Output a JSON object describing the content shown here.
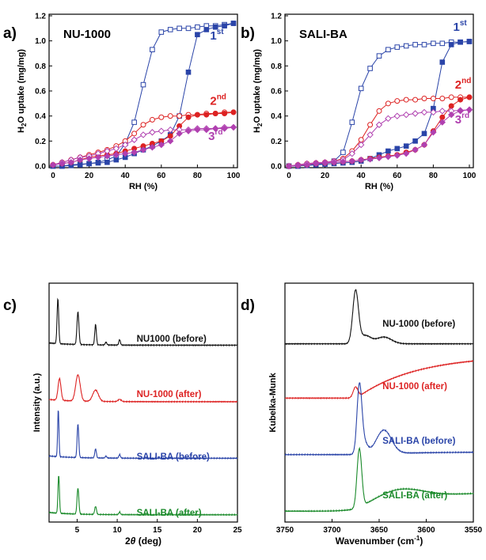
{
  "colors": {
    "blue": "#2a44a8",
    "red": "#dd2222",
    "magenta": "#b040b0",
    "black": "#111111",
    "green": "#1a8a2a"
  },
  "chart_data": [
    {
      "panel": "a)",
      "title": "NU-1000",
      "type": "line",
      "xlabel": "RH (%)",
      "ylabel": "H2O uptake (mg/mg)",
      "xlim": [
        0,
        100
      ],
      "ylim": [
        0,
        1.2
      ],
      "xticks": [
        "0",
        "20",
        "40",
        "60",
        "80",
        "100"
      ],
      "yticks": [
        "0.0",
        "0.2",
        "0.4",
        "0.6",
        "0.8",
        "1.0",
        "1.2"
      ],
      "annotations": [
        {
          "text": "1",
          "sup": "st",
          "color": "#2a44a8",
          "x": 87,
          "y": 1.01
        },
        {
          "text": "2",
          "sup": "nd",
          "color": "#dd2222",
          "x": 87,
          "y": 0.49
        },
        {
          "text": "3",
          "sup": "rd",
          "color": "#b040b0",
          "x": 86,
          "y": 0.21
        }
      ],
      "series": [
        {
          "color": "#2a44a8",
          "marker": "square-open",
          "x": [
            0,
            5,
            10,
            15,
            20,
            25,
            30,
            35,
            40,
            45,
            50,
            55,
            60,
            65,
            70,
            75,
            80,
            85,
            90,
            95,
            100
          ],
          "y": [
            0.0,
            0.0,
            0.01,
            0.015,
            0.02,
            0.03,
            0.05,
            0.08,
            0.18,
            0.35,
            0.65,
            0.93,
            1.07,
            1.09,
            1.1,
            1.1,
            1.11,
            1.12,
            1.12,
            1.13,
            1.14
          ]
        },
        {
          "color": "#2a44a8",
          "marker": "square-filled",
          "x": [
            0,
            5,
            10,
            15,
            20,
            25,
            30,
            35,
            40,
            45,
            50,
            55,
            60,
            65,
            70,
            75,
            80,
            85,
            90,
            95,
            100
          ],
          "y": [
            0.0,
            0.0,
            0.005,
            0.01,
            0.02,
            0.025,
            0.03,
            0.05,
            0.07,
            0.1,
            0.13,
            0.16,
            0.2,
            0.25,
            0.4,
            0.75,
            1.05,
            1.09,
            1.11,
            1.12,
            1.14
          ]
        },
        {
          "color": "#dd2222",
          "marker": "circle-open",
          "x": [
            0,
            5,
            10,
            15,
            20,
            25,
            30,
            35,
            40,
            45,
            50,
            55,
            60,
            65,
            70,
            75,
            80,
            85,
            90,
            95,
            100
          ],
          "y": [
            0.01,
            0.03,
            0.05,
            0.07,
            0.09,
            0.11,
            0.13,
            0.16,
            0.2,
            0.26,
            0.33,
            0.37,
            0.39,
            0.4,
            0.4,
            0.41,
            0.41,
            0.42,
            0.42,
            0.43,
            0.43
          ]
        },
        {
          "color": "#dd2222",
          "marker": "circle-filled",
          "x": [
            0,
            5,
            10,
            15,
            20,
            25,
            30,
            35,
            40,
            45,
            50,
            55,
            60,
            65,
            70,
            75,
            80,
            85,
            90,
            95,
            100
          ],
          "y": [
            0.01,
            0.02,
            0.03,
            0.05,
            0.07,
            0.08,
            0.09,
            0.1,
            0.12,
            0.14,
            0.16,
            0.18,
            0.2,
            0.24,
            0.32,
            0.39,
            0.41,
            0.41,
            0.42,
            0.42,
            0.43
          ]
        },
        {
          "color": "#b040b0",
          "marker": "diamond-open",
          "x": [
            0,
            5,
            10,
            15,
            20,
            25,
            30,
            35,
            40,
            45,
            50,
            55,
            60,
            65,
            70,
            75,
            80,
            85,
            90,
            95,
            100
          ],
          "y": [
            0.01,
            0.03,
            0.05,
            0.07,
            0.08,
            0.1,
            0.12,
            0.14,
            0.17,
            0.21,
            0.25,
            0.27,
            0.28,
            0.29,
            0.29,
            0.29,
            0.3,
            0.3,
            0.3,
            0.31,
            0.31
          ]
        },
        {
          "color": "#b040b0",
          "marker": "diamond-filled",
          "x": [
            0,
            5,
            10,
            15,
            20,
            25,
            30,
            35,
            40,
            45,
            50,
            55,
            60,
            65,
            70,
            75,
            80,
            85,
            90,
            95,
            100
          ],
          "y": [
            0.01,
            0.02,
            0.03,
            0.05,
            0.06,
            0.07,
            0.08,
            0.09,
            0.1,
            0.11,
            0.13,
            0.15,
            0.17,
            0.2,
            0.26,
            0.28,
            0.29,
            0.29,
            0.3,
            0.3,
            0.31
          ]
        }
      ]
    },
    {
      "panel": "b)",
      "title": "SALI-BA",
      "type": "line",
      "xlabel": "RH (%)",
      "ylabel": "H2O uptake (mg/mg)",
      "xlim": [
        0,
        100
      ],
      "ylim": [
        0,
        1.2
      ],
      "xticks": [
        "0",
        "20",
        "40",
        "60",
        "80",
        "100"
      ],
      "yticks": [
        "0.0",
        "0.2",
        "0.4",
        "0.6",
        "0.8",
        "1.0",
        "1.2"
      ],
      "annotations": [
        {
          "text": "1",
          "sup": "st",
          "color": "#2a44a8",
          "x": 91,
          "y": 1.08
        },
        {
          "text": "2",
          "sup": "nd",
          "color": "#dd2222",
          "x": 92,
          "y": 0.62
        },
        {
          "text": "3",
          "sup": "rd",
          "color": "#b040b0",
          "x": 92,
          "y": 0.34
        }
      ],
      "series": [
        {
          "color": "#2a44a8",
          "marker": "square-open",
          "x": [
            0,
            5,
            10,
            15,
            20,
            25,
            30,
            35,
            40,
            45,
            50,
            55,
            60,
            65,
            70,
            75,
            80,
            85,
            90,
            95,
            100
          ],
          "y": [
            0.0,
            0.0,
            0.01,
            0.015,
            0.02,
            0.04,
            0.11,
            0.35,
            0.62,
            0.78,
            0.88,
            0.93,
            0.95,
            0.96,
            0.97,
            0.97,
            0.98,
            0.98,
            0.99,
            0.99,
            0.995
          ]
        },
        {
          "color": "#2a44a8",
          "marker": "square-filled",
          "x": [
            0,
            5,
            10,
            15,
            20,
            25,
            30,
            35,
            40,
            45,
            50,
            55,
            60,
            65,
            70,
            75,
            80,
            85,
            90,
            95,
            100
          ],
          "y": [
            0.0,
            0.0,
            0.005,
            0.01,
            0.015,
            0.02,
            0.025,
            0.03,
            0.04,
            0.06,
            0.09,
            0.12,
            0.14,
            0.16,
            0.2,
            0.26,
            0.46,
            0.83,
            0.97,
            0.99,
            0.995
          ]
        },
        {
          "color": "#dd2222",
          "marker": "circle-open",
          "x": [
            0,
            5,
            10,
            15,
            20,
            25,
            30,
            35,
            40,
            45,
            50,
            55,
            60,
            65,
            70,
            75,
            80,
            85,
            90,
            95,
            100
          ],
          "y": [
            0.0,
            0.01,
            0.02,
            0.025,
            0.03,
            0.04,
            0.06,
            0.12,
            0.21,
            0.33,
            0.44,
            0.5,
            0.52,
            0.53,
            0.53,
            0.54,
            0.54,
            0.54,
            0.55,
            0.55,
            0.55
          ]
        },
        {
          "color": "#dd2222",
          "marker": "circle-filled",
          "x": [
            0,
            5,
            10,
            15,
            20,
            25,
            30,
            35,
            40,
            45,
            50,
            55,
            60,
            65,
            70,
            75,
            80,
            85,
            90,
            95,
            100
          ],
          "y": [
            0.0,
            0.005,
            0.01,
            0.02,
            0.025,
            0.03,
            0.035,
            0.04,
            0.05,
            0.06,
            0.07,
            0.08,
            0.09,
            0.11,
            0.13,
            0.17,
            0.28,
            0.39,
            0.48,
            0.53,
            0.55
          ]
        },
        {
          "color": "#b040b0",
          "marker": "diamond-open",
          "x": [
            0,
            5,
            10,
            15,
            20,
            25,
            30,
            35,
            40,
            45,
            50,
            55,
            60,
            65,
            70,
            75,
            80,
            85,
            90,
            95,
            100
          ],
          "y": [
            0.0,
            0.01,
            0.02,
            0.025,
            0.03,
            0.04,
            0.05,
            0.1,
            0.17,
            0.25,
            0.33,
            0.38,
            0.4,
            0.41,
            0.42,
            0.43,
            0.43,
            0.44,
            0.44,
            0.445,
            0.45
          ]
        },
        {
          "color": "#b040b0",
          "marker": "diamond-filled",
          "x": [
            0,
            5,
            10,
            15,
            20,
            25,
            30,
            35,
            40,
            45,
            50,
            55,
            60,
            65,
            70,
            75,
            80,
            85,
            90,
            95,
            100
          ],
          "y": [
            0.0,
            0.005,
            0.01,
            0.02,
            0.025,
            0.03,
            0.035,
            0.04,
            0.05,
            0.055,
            0.065,
            0.075,
            0.085,
            0.1,
            0.13,
            0.17,
            0.27,
            0.35,
            0.41,
            0.44,
            0.45
          ]
        }
      ]
    },
    {
      "panel": "c)",
      "type": "line",
      "xlabel": "2θ (deg)",
      "ylabel": "Intensity (a.u.)",
      "xlim": [
        1.5,
        25
      ],
      "xticks": [
        "5",
        "10",
        "15",
        "20",
        "25"
      ],
      "series": [
        {
          "name": "NU1000 (before)",
          "color": "#111111",
          "offset": 0.75,
          "scale": 0.2,
          "baseline": 0.02,
          "peaks": [
            {
              "x": 2.6,
              "h": 1.0,
              "w": 0.1
            },
            {
              "x": 5.1,
              "h": 0.72,
              "w": 0.12
            },
            {
              "x": 7.3,
              "h": 0.45,
              "w": 0.1
            },
            {
              "x": 8.6,
              "h": 0.06,
              "w": 0.1
            },
            {
              "x": 10.3,
              "h": 0.12,
              "w": 0.1
            }
          ]
        },
        {
          "name": "NU-1000 (after)",
          "color": "#dd2222",
          "offset": 0.5,
          "scale": 0.2,
          "baseline": 0.02,
          "peaks": [
            {
              "x": 2.8,
              "h": 0.48,
              "w": 0.18
            },
            {
              "x": 5.1,
              "h": 0.58,
              "w": 0.28
            },
            {
              "x": 7.3,
              "h": 0.25,
              "w": 0.35
            },
            {
              "x": 10.3,
              "h": 0.05,
              "w": 0.2
            }
          ]
        },
        {
          "name": "SALI-BA (before)",
          "color": "#2a44a8",
          "offset": 0.25,
          "scale": 0.2,
          "baseline": 0.02,
          "peaks": [
            {
              "x": 2.65,
              "h": 1.05,
              "w": 0.08
            },
            {
              "x": 5.1,
              "h": 0.75,
              "w": 0.1
            },
            {
              "x": 7.3,
              "h": 0.2,
              "w": 0.1
            },
            {
              "x": 8.6,
              "h": 0.04,
              "w": 0.1
            },
            {
              "x": 10.3,
              "h": 0.08,
              "w": 0.1
            }
          ]
        },
        {
          "name": "SALI-BA (after)",
          "color": "#1a8a2a",
          "offset": 0.0,
          "scale": 0.2,
          "baseline": 0.02,
          "peaks": [
            {
              "x": 2.7,
              "h": 0.85,
              "w": 0.09
            },
            {
              "x": 5.1,
              "h": 0.58,
              "w": 0.11
            },
            {
              "x": 7.3,
              "h": 0.18,
              "w": 0.11
            },
            {
              "x": 10.3,
              "h": 0.06,
              "w": 0.1
            }
          ]
        }
      ]
    },
    {
      "panel": "d)",
      "type": "line",
      "xlabel": "Wavenumber (cm-1)",
      "ylabel": "Kubelka-Munk",
      "xlim": [
        3750,
        3550
      ],
      "xticks": [
        "3750",
        "3700",
        "3650",
        "3600",
        "3550"
      ],
      "series": [
        {
          "name": "NU-1000 (before)",
          "color": "#111111",
          "offset": 0.76,
          "scale": 0.2,
          "ramp": [
            0,
            0
          ],
          "peaks": [
            {
              "x": 3675,
              "h": 1.15,
              "w": 3
            },
            {
              "x": 3665,
              "h": 0.18,
              "w": 6
            },
            {
              "x": 3645,
              "h": 0.15,
              "w": 8
            }
          ]
        },
        {
          "name": "NU-1000 (after)",
          "color": "#dd2222",
          "offset": 0.52,
          "scale": 0.2,
          "ramp": [
            0.0,
            0.95
          ],
          "peaks": [
            {
              "x": 3675,
              "h": 0.25,
              "w": 2.5
            }
          ]
        },
        {
          "name": "SALI-BA (before)",
          "color": "#2a44a8",
          "offset": 0.27,
          "scale": 0.2,
          "ramp": [
            0,
            0.06
          ],
          "peaks": [
            {
              "x": 3671,
              "h": 1.4,
              "w": 2.5
            },
            {
              "x": 3667,
              "h": 0.3,
              "w": 4
            },
            {
              "x": 3645,
              "h": 0.52,
              "w": 8
            }
          ]
        },
        {
          "name": "SALI-BA (after)",
          "color": "#1a8a2a",
          "offset": 0.02,
          "scale": 0.2,
          "ramp": [
            0,
            0.45
          ],
          "peaks": [
            {
              "x": 3671,
              "h": 1.3,
              "w": 2.5
            },
            {
              "x": 3630,
              "h": 0.25,
              "w": 25
            }
          ]
        }
      ]
    }
  ]
}
